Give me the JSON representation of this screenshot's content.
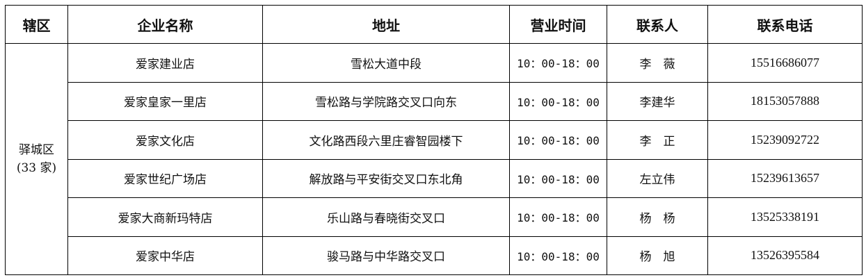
{
  "headers": [
    "辖区",
    "企业名称",
    "地址",
    "营业时间",
    "联系人",
    "联系电话"
  ],
  "district": {
    "name": "驿城区",
    "count": "(33 家)"
  },
  "rows": [
    {
      "name": "爱家建业店",
      "address": "雪松大道中段",
      "hours": "10：00-18：00",
      "contact": "李　薇",
      "phone": "15516686077"
    },
    {
      "name": "爱家皇家一里店",
      "address": "雪松路与学院路交叉口向东",
      "hours": "10：00-18：00",
      "contact": "李建华",
      "phone": "18153057888"
    },
    {
      "name": "爱家文化店",
      "address": "文化路西段六里庄睿智园楼下",
      "hours": "10：00-18：00",
      "contact": "李　正",
      "phone": "15239092722"
    },
    {
      "name": "爱家世纪广场店",
      "address": "解放路与平安街交叉口东北角",
      "hours": "10：00-18：00",
      "contact": "左立伟",
      "phone": "15239613657"
    },
    {
      "name": "爱家大商新玛特店",
      "address": "乐山路与春晓街交叉口",
      "hours": "10：00-18：00",
      "contact": "杨　杨",
      "phone": "13525338191"
    },
    {
      "name": "爱家中华店",
      "address": "骏马路与中华路交叉口",
      "hours": "10：00-18：00",
      "contact": "杨　旭",
      "phone": "13526395584"
    }
  ]
}
